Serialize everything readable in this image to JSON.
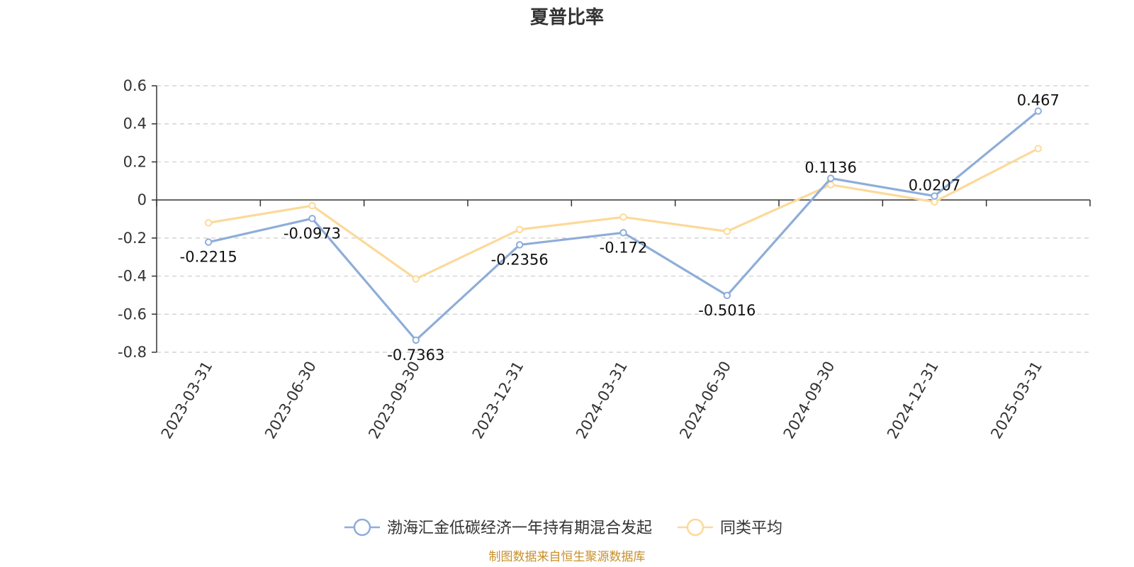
{
  "chart_data": {
    "type": "line",
    "title": "夏普比率",
    "xlabel": "",
    "ylabel": "",
    "categories": [
      "2023-03-31",
      "2023-06-30",
      "2023-09-30",
      "2023-12-31",
      "2024-03-31",
      "2024-06-30",
      "2024-09-30",
      "2024-12-31",
      "2025-03-31"
    ],
    "ylim": [
      -0.8,
      0.6
    ],
    "yticks": [
      0.6,
      0.4,
      0.2,
      0,
      -0.2,
      -0.4,
      -0.6,
      -0.8
    ],
    "ytick_labels": [
      "0.6",
      "0.4",
      "0.2",
      "0",
      "-0.2",
      "-0.4",
      "-0.6",
      "-0.8"
    ],
    "grid": true,
    "legend_position": "bottom-center",
    "series": [
      {
        "name": "渤海汇金低碳经济一年持有期混合发起",
        "color": "#8eadd9",
        "values": [
          -0.2215,
          -0.0973,
          -0.7363,
          -0.2356,
          -0.172,
          -0.5016,
          0.1136,
          0.0207,
          0.467
        ],
        "data_labels": [
          "-0.2215",
          "-0.0973",
          "-0.7363",
          "-0.2356",
          "-0.172",
          "-0.5016",
          "0.1136",
          "0.0207",
          "0.467"
        ]
      },
      {
        "name": "同类平均",
        "color": "#fcd99a",
        "values": [
          -0.12,
          -0.03,
          -0.415,
          -0.155,
          -0.09,
          -0.165,
          0.08,
          -0.01,
          0.27
        ]
      }
    ],
    "source": "制图数据来自恒生聚源数据库"
  }
}
